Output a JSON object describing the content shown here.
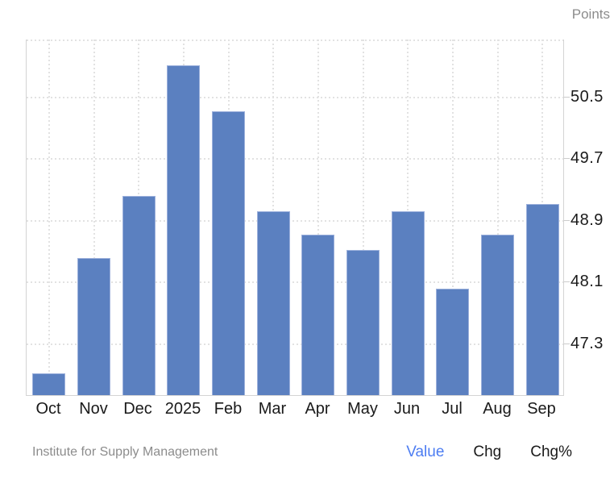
{
  "header": {
    "units_label": "Points"
  },
  "chart_data": {
    "type": "bar",
    "title": "",
    "xlabel": "",
    "ylabel": "Points",
    "categories": [
      "Oct",
      "Nov",
      "Dec",
      "2025",
      "Feb",
      "Mar",
      "Apr",
      "May",
      "Jun",
      "Jul",
      "Aug",
      "Sep"
    ],
    "values": [
      46.9,
      48.4,
      49.2,
      50.9,
      50.3,
      49.0,
      48.7,
      48.5,
      49.0,
      48.0,
      48.7,
      49.1
    ],
    "yticks": [
      50.5,
      49.7,
      48.9,
      48.1,
      47.3
    ],
    "ylim": [
      46.62,
      51.24
    ],
    "grid": true,
    "legend": "none",
    "bar_color": "#5b80c0",
    "bar_edge_color": "#9db1dc"
  },
  "footer": {
    "source": "Institute for Supply Management",
    "tabs": [
      {
        "label": "Value",
        "active": true
      },
      {
        "label": "Chg",
        "active": false
      },
      {
        "label": "Chg%",
        "active": false
      }
    ]
  },
  "colors": {
    "accent_bar": "#5b80c0",
    "active_link": "#4d7df2",
    "text_dark": "#1a1a1a",
    "text_muted": "#8c8c8c",
    "gridline": "#e2e2e2",
    "axis_border": "#d4d4d4"
  }
}
